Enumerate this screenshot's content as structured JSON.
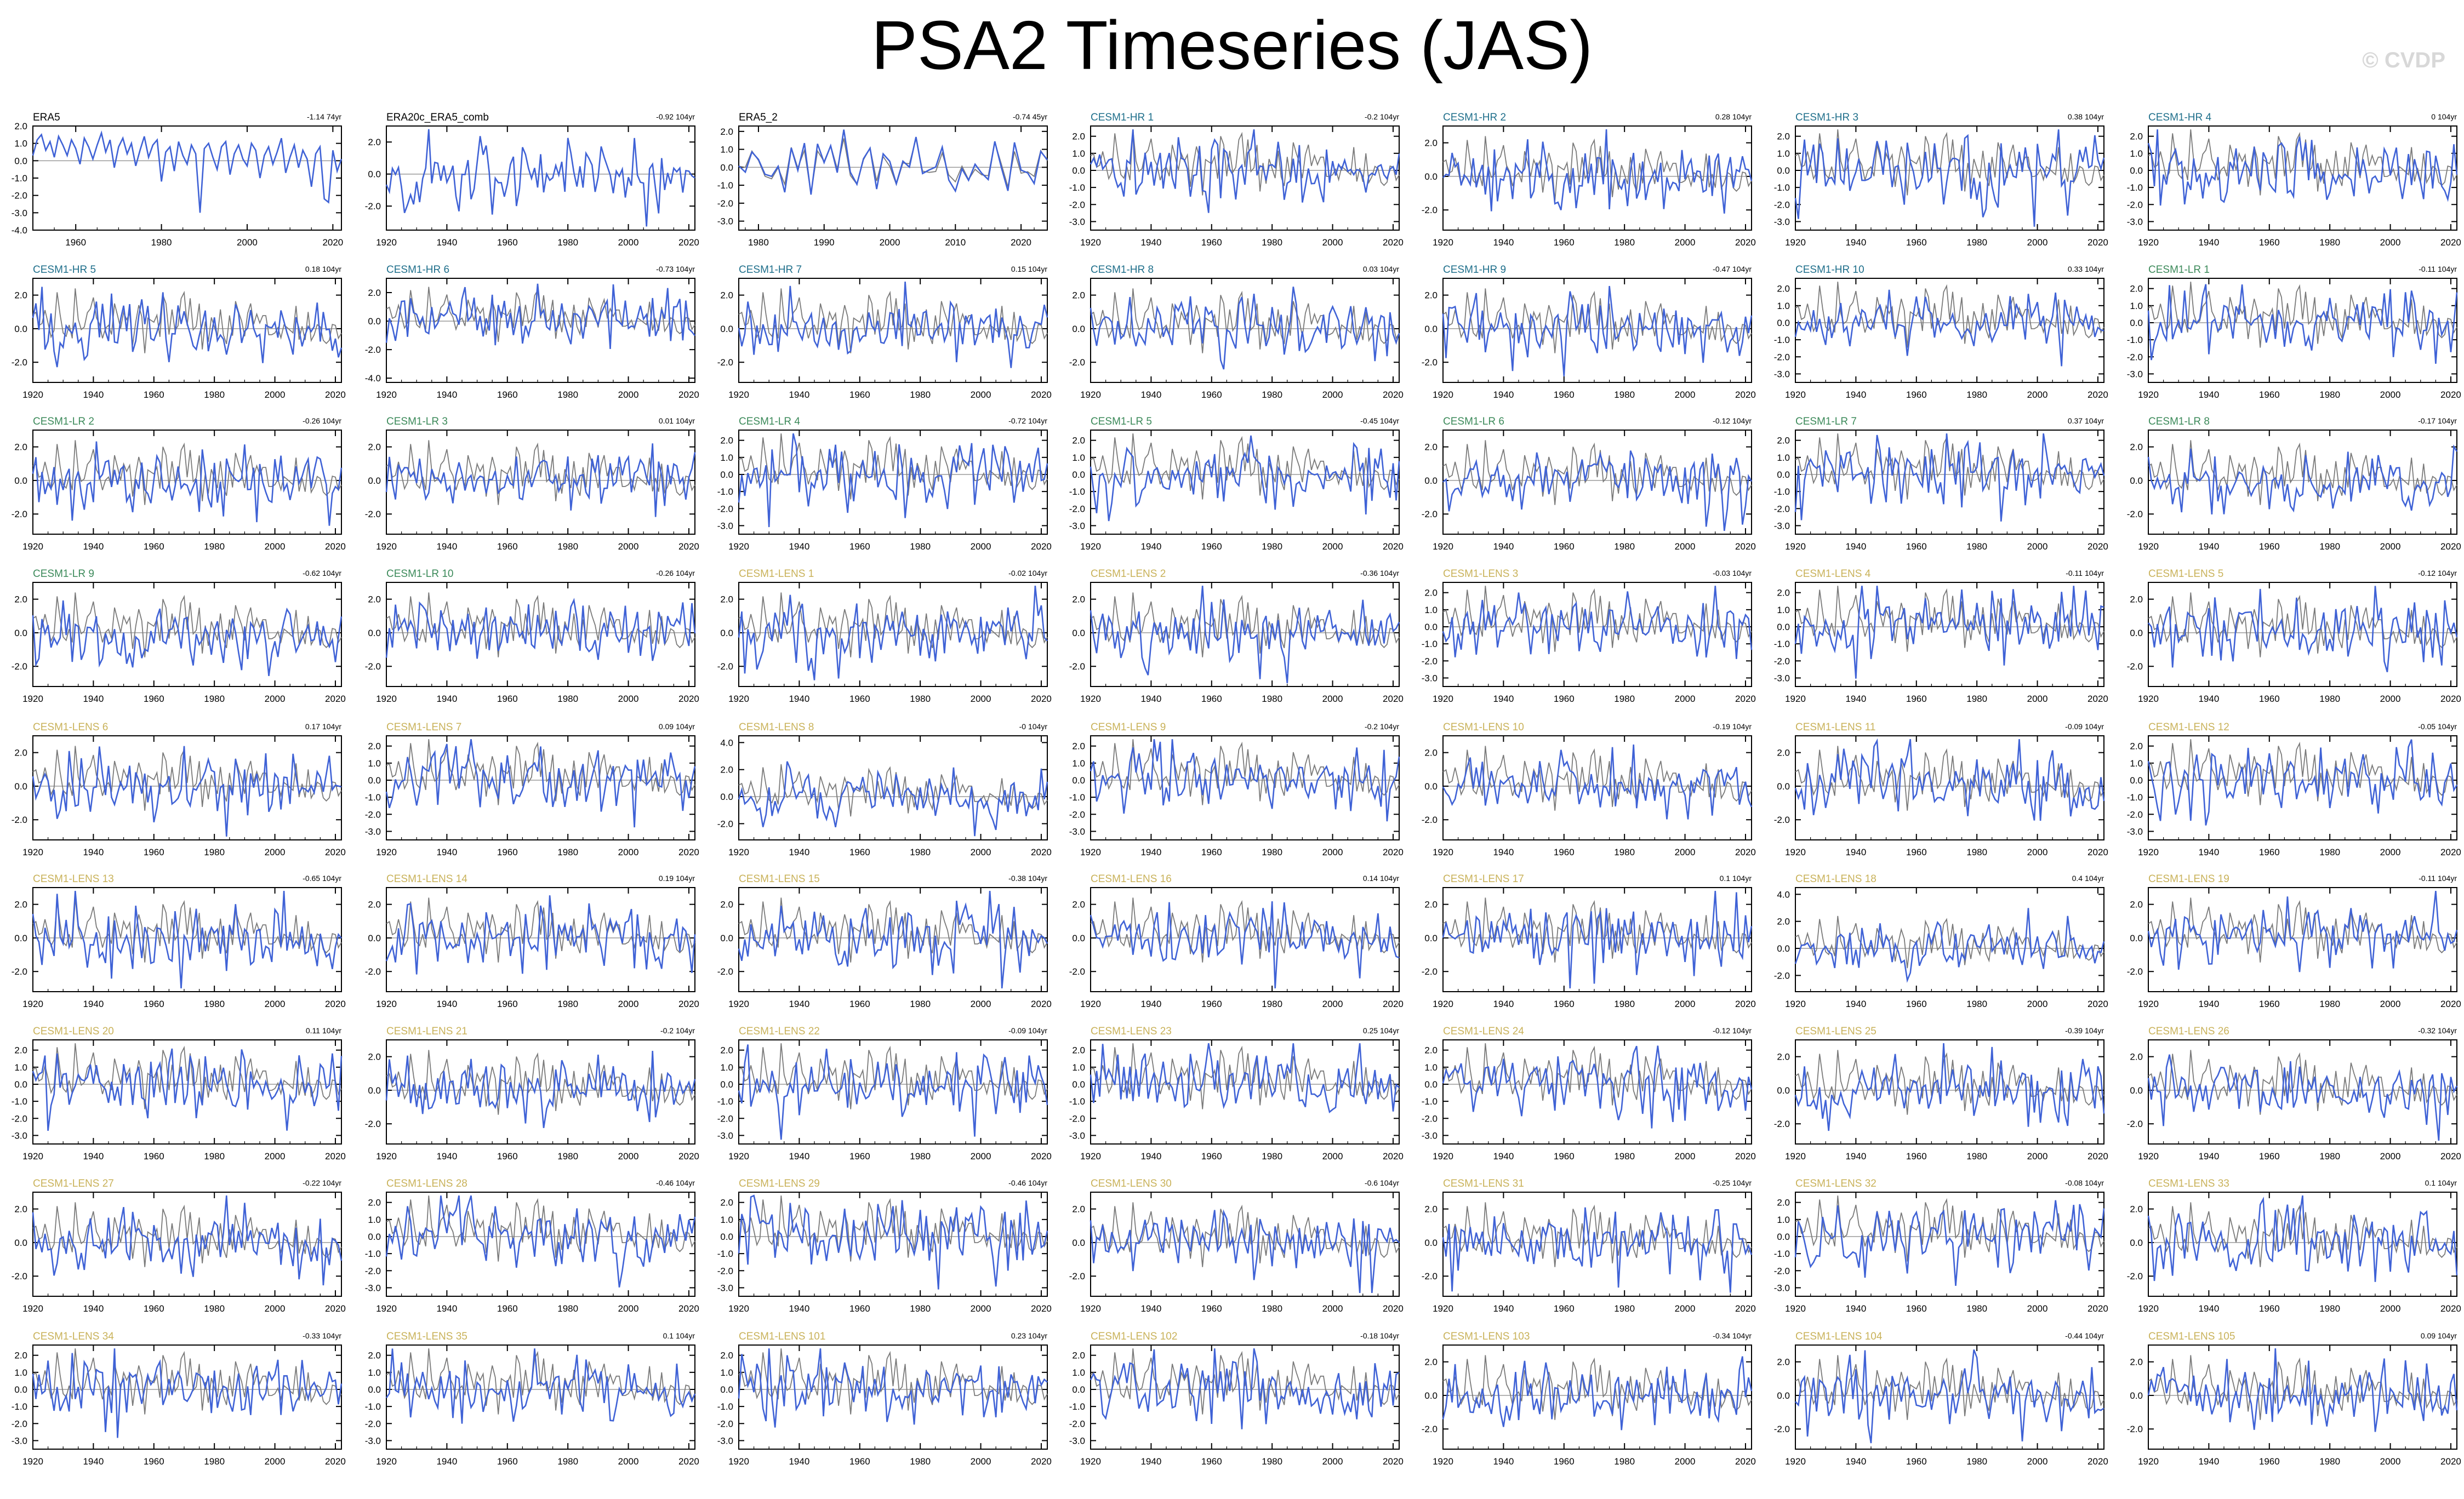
{
  "title": "PSA2 Timeseries (JAS)",
  "watermark": "© CVDP",
  "colors": {
    "background": "#ffffff",
    "model_line": "#3f62d6",
    "obs_line": "#7a7a7a",
    "zero_line": "#9a9a9a",
    "label_obs": "#000000",
    "label_hr": "#1f6f8b",
    "label_lr": "#3c8a5a",
    "label_lens": "#c9b25a"
  },
  "trend_unit": "104yr",
  "chart_data": [
    {
      "type": "line",
      "label": "ERA5",
      "group": "obs",
      "trend": "-1.14 74yr",
      "xlim": [
        1950,
        2022
      ],
      "xticks": [
        1960,
        1980,
        2000,
        2020
      ],
      "yticks": [
        "2.0",
        "1.0",
        "0.0",
        "-1.0",
        "-2.0",
        "-3.0",
        "-4.0"
      ],
      "ylim": [
        -4,
        2
      ],
      "series": [
        {
          "values": [
            0.3,
            1.2,
            1.5,
            0.6,
            1.1,
            0.2,
            1.4,
            0.9,
            0.3,
            1.2,
            0.7,
            -0.2,
            1.3,
            0.8,
            0.1,
            0.9,
            1.6,
            0.5,
            1.2,
            -0.4,
            0.8,
            1.3,
            0.4,
            1.0,
            -0.3,
            0.6,
            1.4,
            0.2,
            0.9,
            1.2,
            -1.2,
            0.5,
            0.8,
            -0.6,
            1.1,
            0.3,
            -0.2,
            0.9,
            0.4,
            -3.0,
            0.7,
            1.0,
            0.2,
            -0.5,
            0.8,
            1.1,
            -0.8,
            0.4,
            0.9,
            0.1,
            -0.3,
            1.0,
            0.6,
            -1.0,
            0.3,
            0.8,
            -0.2,
            0.5,
            1.3,
            -0.7,
            0.2,
            0.9,
            -0.4,
            0.6,
            0.1,
            -1.5,
            0.4,
            0.8,
            -2.2,
            -2.4,
            0.6,
            -0.6,
            0.1
          ]
        }
      ]
    },
    {
      "type": "line",
      "label": "ERA20c_ERA5_comb",
      "group": "obs",
      "trend": "-0.92 104yr",
      "xlim": [
        1920,
        2022
      ],
      "yticks": [
        "2.0",
        "0.0",
        "-2.0"
      ],
      "ylim": [
        -3.5,
        3
      ]
    },
    {
      "type": "line",
      "label": "ERA5_2",
      "group": "obs",
      "trend": "-0.74 45yr",
      "xlim": [
        1977,
        2024
      ],
      "xticks": [
        1980,
        1990,
        2000,
        2010,
        2020
      ],
      "yticks": [
        "2.0",
        "1.0",
        "0.0",
        "-1.0",
        "-2.0",
        "-3.0"
      ],
      "ylim": [
        -3.5,
        2.3
      ]
    },
    {
      "type": "line",
      "label": "CESM1-HR 1",
      "group": "hr",
      "trend": "-0.2 104yr",
      "yticks": [
        "2.0",
        "1.0",
        "0.0",
        "-1.0",
        "-2.0",
        "-3.0"
      ],
      "ylim": [
        -3.5,
        2.6
      ]
    },
    {
      "type": "line",
      "label": "CESM1-HR 2",
      "group": "hr",
      "trend": "0.28 104yr",
      "yticks": [
        "2.0",
        "0.0",
        "-2.0"
      ],
      "ylim": [
        -3.2,
        3
      ]
    },
    {
      "type": "line",
      "label": "CESM1-HR 3",
      "group": "hr",
      "trend": "0.38 104yr",
      "yticks": [
        "2.0",
        "1.0",
        "0.0",
        "-1.0",
        "-2.0",
        "-3.0"
      ],
      "ylim": [
        -3.5,
        2.6
      ]
    },
    {
      "type": "line",
      "label": "CESM1-HR 4",
      "group": "hr",
      "trend": "0 104yr",
      "yticks": [
        "2.0",
        "1.0",
        "0.0",
        "-1.0",
        "-2.0",
        "-3.0"
      ],
      "ylim": [
        -3.5,
        2.6
      ]
    },
    {
      "type": "line",
      "label": "CESM1-HR 5",
      "group": "hr",
      "trend": "0.18 104yr",
      "yticks": [
        "2.0",
        "0.0",
        "-2.0"
      ],
      "ylim": [
        -3.2,
        3
      ]
    },
    {
      "type": "line",
      "label": "CESM1-HR 6",
      "group": "hr",
      "trend": "-0.73 104yr",
      "yticks": [
        "2.0",
        "0.0",
        "-2.0",
        "-4.0"
      ],
      "ylim": [
        -4.3,
        3
      ]
    },
    {
      "type": "line",
      "label": "CESM1-HR 7",
      "group": "hr",
      "trend": "0.15 104yr",
      "yticks": [
        "2.0",
        "0.0",
        "-2.0"
      ],
      "ylim": [
        -3.2,
        3
      ]
    },
    {
      "type": "line",
      "label": "CESM1-HR 8",
      "group": "hr",
      "trend": "0.03 104yr",
      "yticks": [
        "2.0",
        "0.0",
        "-2.0"
      ],
      "ylim": [
        -3.2,
        3
      ]
    },
    {
      "type": "line",
      "label": "CESM1-HR 9",
      "group": "hr",
      "trend": "-0.47 104yr",
      "yticks": [
        "2.0",
        "0.0",
        "-2.0"
      ],
      "ylim": [
        -3.2,
        3
      ]
    },
    {
      "type": "line",
      "label": "CESM1-HR 10",
      "group": "hr",
      "trend": "0.33 104yr",
      "yticks": [
        "2.0",
        "1.0",
        "0.0",
        "-1.0",
        "-2.0",
        "-3.0"
      ],
      "ylim": [
        -3.5,
        2.6
      ]
    },
    {
      "type": "line",
      "label": "CESM1-LR 1",
      "group": "lr",
      "trend": "-0.11 104yr",
      "yticks": [
        "2.0",
        "1.0",
        "0.0",
        "-1.0",
        "-2.0",
        "-3.0"
      ],
      "ylim": [
        -3.5,
        2.6
      ]
    },
    {
      "type": "line",
      "label": "CESM1-LR 2",
      "group": "lr",
      "trend": "-0.26 104yr",
      "yticks": [
        "2.0",
        "0.0",
        "-2.0"
      ],
      "ylim": [
        -3.2,
        3
      ]
    },
    {
      "type": "line",
      "label": "CESM1-LR 3",
      "group": "lr",
      "trend": "0.01 104yr",
      "yticks": [
        "2.0",
        "0.0",
        "-2.0"
      ],
      "ylim": [
        -3.2,
        3
      ]
    },
    {
      "type": "line",
      "label": "CESM1-LR 4",
      "group": "lr",
      "trend": "-0.72 104yr",
      "yticks": [
        "2.0",
        "1.0",
        "0.0",
        "-1.0",
        "-2.0",
        "-3.0"
      ],
      "ylim": [
        -3.5,
        2.6
      ]
    },
    {
      "type": "line",
      "label": "CESM1-LR 5",
      "group": "lr",
      "trend": "-0.45 104yr",
      "yticks": [
        "2.0",
        "1.0",
        "0.0",
        "-1.0",
        "-2.0",
        "-3.0"
      ],
      "ylim": [
        -3.5,
        2.6
      ]
    },
    {
      "type": "line",
      "label": "CESM1-LR 6",
      "group": "lr",
      "trend": "-0.12 104yr",
      "yticks": [
        "2.0",
        "0.0",
        "-2.0"
      ],
      "ylim": [
        -3.2,
        3
      ]
    },
    {
      "type": "line",
      "label": "CESM1-LR 7",
      "group": "lr",
      "trend": "0.37 104yr",
      "yticks": [
        "2.0",
        "1.0",
        "0.0",
        "-1.0",
        "-2.0",
        "-3.0"
      ],
      "ylim": [
        -3.5,
        2.6
      ]
    },
    {
      "type": "line",
      "label": "CESM1-LR 8",
      "group": "lr",
      "trend": "-0.17 104yr",
      "yticks": [
        "2.0",
        "0.0",
        "-2.0"
      ],
      "ylim": [
        -3.2,
        3
      ]
    },
    {
      "type": "line",
      "label": "CESM1-LR 9",
      "group": "lr",
      "trend": "-0.62 104yr",
      "yticks": [
        "2.0",
        "0.0",
        "-2.0"
      ],
      "ylim": [
        -3.2,
        3
      ]
    },
    {
      "type": "line",
      "label": "CESM1-LR 10",
      "group": "lr",
      "trend": "-0.26 104yr",
      "yticks": [
        "2.0",
        "0.0",
        "-2.0"
      ],
      "ylim": [
        -3.2,
        3
      ]
    },
    {
      "type": "line",
      "label": "CESM1-LENS 1",
      "group": "lens",
      "trend": "-0.02 104yr",
      "yticks": [
        "2.0",
        "0.0",
        "-2.0"
      ],
      "ylim": [
        -3.2,
        3
      ]
    },
    {
      "type": "line",
      "label": "CESM1-LENS 2",
      "group": "lens",
      "trend": "-0.36 104yr",
      "yticks": [
        "2.0",
        "0.0",
        "-2.0"
      ],
      "ylim": [
        -3.2,
        3
      ]
    },
    {
      "type": "line",
      "label": "CESM1-LENS 3",
      "group": "lens",
      "trend": "-0.03 104yr",
      "yticks": [
        "2.0",
        "1.0",
        "0.0",
        "-1.0",
        "-2.0",
        "-3.0"
      ],
      "ylim": [
        -3.5,
        2.6
      ]
    },
    {
      "type": "line",
      "label": "CESM1-LENS 4",
      "group": "lens",
      "trend": "-0.11 104yr",
      "yticks": [
        "2.0",
        "1.0",
        "0.0",
        "-1.0",
        "-2.0",
        "-3.0"
      ],
      "ylim": [
        -3.5,
        2.6
      ]
    },
    {
      "type": "line",
      "label": "CESM1-LENS 5",
      "group": "lens",
      "trend": "-0.12 104yr",
      "yticks": [
        "2.0",
        "0.0",
        "-2.0"
      ],
      "ylim": [
        -3.2,
        3
      ]
    },
    {
      "type": "line",
      "label": "CESM1-LENS 6",
      "group": "lens",
      "trend": "0.17 104yr",
      "yticks": [
        "2.0",
        "0.0",
        "-2.0"
      ],
      "ylim": [
        -3.2,
        3
      ]
    },
    {
      "type": "line",
      "label": "CESM1-LENS 7",
      "group": "lens",
      "trend": "0.09 104yr",
      "yticks": [
        "2.0",
        "1.0",
        "0.0",
        "-1.0",
        "-2.0",
        "-3.0"
      ],
      "ylim": [
        -3.5,
        2.6
      ]
    },
    {
      "type": "line",
      "label": "CESM1-LENS 8",
      "group": "lens",
      "trend": "-0 104yr",
      "yticks": [
        "4.0",
        "2.0",
        "0.0",
        "-2.0"
      ],
      "ylim": [
        -3.2,
        4.5
      ]
    },
    {
      "type": "line",
      "label": "CESM1-LENS 9",
      "group": "lens",
      "trend": "-0.2 104yr",
      "yticks": [
        "2.0",
        "1.0",
        "0.0",
        "-1.0",
        "-2.0",
        "-3.0"
      ],
      "ylim": [
        -3.5,
        2.6
      ]
    },
    {
      "type": "line",
      "label": "CESM1-LENS 10",
      "group": "lens",
      "trend": "-0.19 104yr",
      "yticks": [
        "2.0",
        "0.0",
        "-2.0"
      ],
      "ylim": [
        -3.2,
        3
      ]
    },
    {
      "type": "line",
      "label": "CESM1-LENS 11",
      "group": "lens",
      "trend": "-0.09 104yr",
      "yticks": [
        "2.0",
        "0.0",
        "-2.0"
      ],
      "ylim": [
        -3.2,
        3
      ]
    },
    {
      "type": "line",
      "label": "CESM1-LENS 12",
      "group": "lens",
      "trend": "-0.05 104yr",
      "yticks": [
        "2.0",
        "1.0",
        "0.0",
        "-1.0",
        "-2.0",
        "-3.0"
      ],
      "ylim": [
        -3.5,
        2.6
      ]
    },
    {
      "type": "line",
      "label": "CESM1-LENS 13",
      "group": "lens",
      "trend": "-0.65 104yr",
      "yticks": [
        "2.0",
        "0.0",
        "-2.0"
      ],
      "ylim": [
        -3.2,
        3
      ]
    },
    {
      "type": "line",
      "label": "CESM1-LENS 14",
      "group": "lens",
      "trend": "0.19 104yr",
      "yticks": [
        "2.0",
        "0.0",
        "-2.0"
      ],
      "ylim": [
        -3.2,
        3
      ]
    },
    {
      "type": "line",
      "label": "CESM1-LENS 15",
      "group": "lens",
      "trend": "-0.38 104yr",
      "yticks": [
        "2.0",
        "0.0",
        "-2.0"
      ],
      "ylim": [
        -3.2,
        3
      ]
    },
    {
      "type": "line",
      "label": "CESM1-LENS 16",
      "group": "lens",
      "trend": "0.14 104yr",
      "yticks": [
        "2.0",
        "0.0",
        "-2.0"
      ],
      "ylim": [
        -3.2,
        3
      ]
    },
    {
      "type": "line",
      "label": "CESM1-LENS 17",
      "group": "lens",
      "trend": "0.1 104yr",
      "yticks": [
        "2.0",
        "0.0",
        "-2.0"
      ],
      "ylim": [
        -3.2,
        3
      ]
    },
    {
      "type": "line",
      "label": "CESM1-LENS 18",
      "group": "lens",
      "trend": "0.4 104yr",
      "yticks": [
        "4.0",
        "2.0",
        "0.0",
        "-2.0"
      ],
      "ylim": [
        -3.2,
        4.5
      ]
    },
    {
      "type": "line",
      "label": "CESM1-LENS 19",
      "group": "lens",
      "trend": "-0.11 104yr",
      "yticks": [
        "2.0",
        "0.0",
        "-2.0"
      ],
      "ylim": [
        -3.2,
        3
      ]
    },
    {
      "type": "line",
      "label": "CESM1-LENS 20",
      "group": "lens",
      "trend": "0.11 104yr",
      "yticks": [
        "2.0",
        "1.0",
        "0.0",
        "-1.0",
        "-2.0",
        "-3.0"
      ],
      "ylim": [
        -3.5,
        2.6
      ]
    },
    {
      "type": "line",
      "label": "CESM1-LENS 21",
      "group": "lens",
      "trend": "-0.2 104yr",
      "yticks": [
        "2.0",
        "0.0",
        "-2.0"
      ],
      "ylim": [
        -3.2,
        3
      ]
    },
    {
      "type": "line",
      "label": "CESM1-LENS 22",
      "group": "lens",
      "trend": "-0.09 104yr",
      "yticks": [
        "2.0",
        "1.0",
        "0.0",
        "-1.0",
        "-2.0",
        "-3.0"
      ],
      "ylim": [
        -3.5,
        2.6
      ]
    },
    {
      "type": "line",
      "label": "CESM1-LENS 23",
      "group": "lens",
      "trend": "0.25 104yr",
      "yticks": [
        "2.0",
        "1.0",
        "0.0",
        "-1.0",
        "-2.0",
        "-3.0"
      ],
      "ylim": [
        -3.5,
        2.6
      ]
    },
    {
      "type": "line",
      "label": "CESM1-LENS 24",
      "group": "lens",
      "trend": "-0.12 104yr",
      "yticks": [
        "2.0",
        "1.0",
        "0.0",
        "-1.0",
        "-2.0",
        "-3.0"
      ],
      "ylim": [
        -3.5,
        2.6
      ]
    },
    {
      "type": "line",
      "label": "CESM1-LENS 25",
      "group": "lens",
      "trend": "-0.39 104yr",
      "yticks": [
        "2.0",
        "0.0",
        "-2.0"
      ],
      "ylim": [
        -3.2,
        3
      ]
    },
    {
      "type": "line",
      "label": "CESM1-LENS 26",
      "group": "lens",
      "trend": "-0.32 104yr",
      "yticks": [
        "2.0",
        "0.0",
        "-2.0"
      ],
      "ylim": [
        -3.2,
        3
      ]
    },
    {
      "type": "line",
      "label": "CESM1-LENS 27",
      "group": "lens",
      "trend": "-0.22 104yr",
      "yticks": [
        "2.0",
        "0.0",
        "-2.0"
      ],
      "ylim": [
        -3.2,
        3
      ]
    },
    {
      "type": "line",
      "label": "CESM1-LENS 28",
      "group": "lens",
      "trend": "-0.46 104yr",
      "yticks": [
        "2.0",
        "1.0",
        "0.0",
        "-1.0",
        "-2.0",
        "-3.0"
      ],
      "ylim": [
        -3.5,
        2.6
      ]
    },
    {
      "type": "line",
      "label": "CESM1-LENS 29",
      "group": "lens",
      "trend": "-0.46 104yr",
      "yticks": [
        "2.0",
        "1.0",
        "0.0",
        "-1.0",
        "-2.0",
        "-3.0"
      ],
      "ylim": [
        -3.5,
        2.6
      ]
    },
    {
      "type": "line",
      "label": "CESM1-LENS 30",
      "group": "lens",
      "trend": "-0.6 104yr",
      "yticks": [
        "2.0",
        "0.0",
        "-2.0"
      ],
      "ylim": [
        -3.2,
        3
      ]
    },
    {
      "type": "line",
      "label": "CESM1-LENS 31",
      "group": "lens",
      "trend": "-0.25 104yr",
      "yticks": [
        "2.0",
        "0.0",
        "-2.0"
      ],
      "ylim": [
        -3.2,
        3
      ]
    },
    {
      "type": "line",
      "label": "CESM1-LENS 32",
      "group": "lens",
      "trend": "-0.08 104yr",
      "yticks": [
        "2.0",
        "1.0",
        "0.0",
        "-1.0",
        "-2.0",
        "-3.0"
      ],
      "ylim": [
        -3.5,
        2.6
      ]
    },
    {
      "type": "line",
      "label": "CESM1-LENS 33",
      "group": "lens",
      "trend": "0.1 104yr",
      "yticks": [
        "2.0",
        "0.0",
        "-2.0"
      ],
      "ylim": [
        -3.2,
        3
      ]
    },
    {
      "type": "line",
      "label": "CESM1-LENS 34",
      "group": "lens",
      "trend": "-0.33 104yr",
      "yticks": [
        "2.0",
        "1.0",
        "0.0",
        "-1.0",
        "-2.0",
        "-3.0"
      ],
      "ylim": [
        -3.5,
        2.6
      ]
    },
    {
      "type": "line",
      "label": "CESM1-LENS 35",
      "group": "lens",
      "trend": "0.1 104yr",
      "yticks": [
        "2.0",
        "1.0",
        "0.0",
        "-1.0",
        "-2.0",
        "-3.0"
      ],
      "ylim": [
        -3.5,
        2.6
      ]
    },
    {
      "type": "line",
      "label": "CESM1-LENS 101",
      "group": "lens",
      "trend": "0.23 104yr",
      "yticks": [
        "2.0",
        "1.0",
        "0.0",
        "-1.0",
        "-2.0",
        "-3.0"
      ],
      "ylim": [
        -3.5,
        2.6
      ]
    },
    {
      "type": "line",
      "label": "CESM1-LENS 102",
      "group": "lens",
      "trend": "-0.18 104yr",
      "yticks": [
        "2.0",
        "1.0",
        "0.0",
        "-1.0",
        "-2.0",
        "-3.0"
      ],
      "ylim": [
        -3.5,
        2.6
      ]
    },
    {
      "type": "line",
      "label": "CESM1-LENS 103",
      "group": "lens",
      "trend": "-0.34 104yr",
      "yticks": [
        "2.0",
        "0.0",
        "-2.0"
      ],
      "ylim": [
        -3.2,
        3
      ]
    },
    {
      "type": "line",
      "label": "CESM1-LENS 104",
      "group": "lens",
      "trend": "-0.44 104yr",
      "yticks": [
        "2.0",
        "0.0",
        "-2.0"
      ],
      "ylim": [
        -3.2,
        3
      ]
    },
    {
      "type": "line",
      "label": "CESM1-LENS 105",
      "group": "lens",
      "trend": "0.09 104yr",
      "yticks": [
        "2.0",
        "0.0",
        "-2.0"
      ],
      "ylim": [
        -3.2,
        3
      ]
    }
  ],
  "default_xlim": [
    1920,
    2022
  ],
  "default_xticks": [
    1920,
    1940,
    1960,
    1980,
    2000,
    2020
  ]
}
